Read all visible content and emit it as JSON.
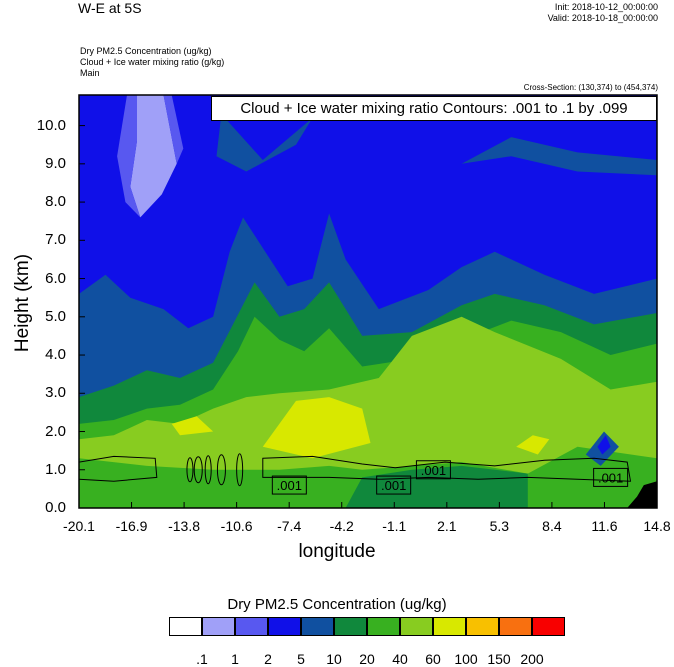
{
  "header": {
    "title": "W-E at 5S",
    "init": "Init: 2018-10-12_00:00:00",
    "valid": "Valid: 2018-10-18_00:00:00",
    "field1": "Dry PM2.5 Concentration   (ug/kg)",
    "field2": "Cloud + Ice water mixing ratio   (g/kg)",
    "field3": "Main",
    "cross_section": "Cross-Section: (130,374) to (454,374)"
  },
  "chart_data": {
    "type": "heatmap",
    "contour_title": "Cloud + Ice water mixing ratio Contours: .001 to .1 by .099",
    "xlabel": "longitude",
    "ylabel": "Height (km)",
    "x_ticks": [
      "-20.1",
      "-16.9",
      "-13.8",
      "-10.6",
      "-7.4",
      "-4.2",
      "-1.1",
      "2.1",
      "5.3",
      "8.4",
      "11.6",
      "14.8"
    ],
    "x_range": [
      -20.1,
      14.8
    ],
    "y_ticks": [
      "0.0",
      "1.0",
      "2.0",
      "3.0",
      "4.0",
      "5.0",
      "6.0",
      "7.0",
      "8.0",
      "9.0",
      "10.0"
    ],
    "y_range": [
      0,
      10.8
    ],
    "contour_labels": [
      {
        "text": ".001",
        "x": -7.4,
        "y": 0.6
      },
      {
        "text": ".001",
        "x": -1.1,
        "y": 0.6
      },
      {
        "text": ".001",
        "x": 1.3,
        "y": 1.0
      },
      {
        "text": ".001",
        "x": 12.0,
        "y": 0.8
      }
    ],
    "colorbar": {
      "title": "Dry PM2.5 Concentration  (ug/kg)",
      "labels": [
        ".1",
        "1",
        "2",
        "5",
        "10",
        "20",
        "40",
        "60",
        "100",
        "150",
        "200"
      ],
      "colors": [
        "#ffffff",
        "#a0a0f8",
        "#5858f0",
        "#1010e8",
        "#1050a0",
        "#10883c",
        "#38b020",
        "#88cc20",
        "#d8e800",
        "#f8c000",
        "#f87010",
        "#f80000"
      ]
    },
    "regions": [
      {
        "color": "#1010e8",
        "pts": [
          [
            -20.1,
            0
          ],
          [
            14.8,
            0
          ],
          [
            14.8,
            10.8
          ],
          [
            -20.1,
            10.8
          ]
        ]
      },
      {
        "color": "#1050a0",
        "pts": [
          [
            -20.1,
            0
          ],
          [
            14.8,
            0
          ],
          [
            14.8,
            6.0
          ],
          [
            11,
            5.6
          ],
          [
            8,
            6.1
          ],
          [
            5,
            6.7
          ],
          [
            3,
            6.3
          ],
          [
            1,
            5.7
          ],
          [
            -2,
            5.2
          ],
          [
            -4,
            6.5
          ],
          [
            -5,
            7.7
          ],
          [
            -6,
            6.0
          ],
          [
            -7.5,
            5.8
          ],
          [
            -9,
            6.8
          ],
          [
            -10.2,
            7.6
          ],
          [
            -11,
            6.7
          ],
          [
            -12,
            5.0
          ],
          [
            -13.5,
            4.7
          ],
          [
            -15,
            5.2
          ],
          [
            -17,
            5.5
          ],
          [
            -18.5,
            6.1
          ],
          [
            -20.1,
            5.6
          ]
        ]
      },
      {
        "color": "#1050a0",
        "pts": [
          [
            -11.5,
            10.3
          ],
          [
            -9,
            9.1
          ],
          [
            -6,
            10.2
          ],
          [
            -7,
            9.5
          ],
          [
            -10,
            8.8
          ],
          [
            -11.8,
            9.2
          ]
        ]
      },
      {
        "color": "#1050a0",
        "pts": [
          [
            3,
            9.0
          ],
          [
            6,
            9.7
          ],
          [
            10,
            9.3
          ],
          [
            14.8,
            9.1
          ],
          [
            14.8,
            8.7
          ],
          [
            10,
            8.8
          ],
          [
            6,
            9.2
          ]
        ]
      },
      {
        "color": "#10883c",
        "pts": [
          [
            -20.1,
            0
          ],
          [
            14.8,
            0
          ],
          [
            14.8,
            5.1
          ],
          [
            11,
            4.8
          ],
          [
            8,
            5.3
          ],
          [
            5,
            5.6
          ],
          [
            3,
            5.3
          ],
          [
            0,
            4.6
          ],
          [
            -3,
            4.5
          ],
          [
            -5,
            5.9
          ],
          [
            -6.5,
            5.2
          ],
          [
            -8,
            5.0
          ],
          [
            -9.5,
            5.9
          ],
          [
            -10.8,
            4.8
          ],
          [
            -12,
            3.8
          ],
          [
            -14,
            3.4
          ],
          [
            -16,
            3.6
          ],
          [
            -18,
            3.2
          ],
          [
            -20.1,
            2.9
          ]
        ]
      },
      {
        "color": "#38b020",
        "pts": [
          [
            -20.1,
            0
          ],
          [
            14.8,
            0
          ],
          [
            14.8,
            4.3
          ],
          [
            12,
            4.0
          ],
          [
            9,
            4.6
          ],
          [
            6,
            4.9
          ],
          [
            3,
            4.4
          ],
          [
            0,
            3.9
          ],
          [
            -3,
            3.7
          ],
          [
            -5,
            4.7
          ],
          [
            -6.5,
            4.1
          ],
          [
            -8,
            4.4
          ],
          [
            -9.5,
            5.0
          ],
          [
            -10.5,
            4.1
          ],
          [
            -12,
            3.1
          ],
          [
            -14,
            2.7
          ],
          [
            -16,
            2.6
          ],
          [
            -18,
            2.3
          ],
          [
            -20.1,
            2.2
          ]
        ]
      },
      {
        "color": "#88cc20",
        "pts": [
          [
            -20.1,
            0
          ],
          [
            14.8,
            0
          ],
          [
            14.8,
            3.3
          ],
          [
            12,
            3.1
          ],
          [
            9,
            3.9
          ],
          [
            5,
            4.6
          ],
          [
            3,
            5.0
          ],
          [
            0,
            4.5
          ],
          [
            -2,
            3.4
          ],
          [
            -5,
            3.1
          ],
          [
            -8,
            3.0
          ],
          [
            -10,
            2.9
          ],
          [
            -12,
            2.6
          ],
          [
            -14,
            2.2
          ],
          [
            -16,
            2.3
          ],
          [
            -18,
            1.9
          ],
          [
            -20.1,
            1.8
          ]
        ]
      },
      {
        "color": "#d8e800",
        "pts": [
          [
            -9,
            1.6
          ],
          [
            -7,
            2.8
          ],
          [
            -5,
            2.9
          ],
          [
            -3,
            2.6
          ],
          [
            -2.5,
            1.7
          ],
          [
            -6,
            1.3
          ]
        ]
      },
      {
        "color": "#d8e800",
        "pts": [
          [
            -14.5,
            2.2
          ],
          [
            -13,
            2.4
          ],
          [
            -12,
            2.0
          ],
          [
            -14,
            1.9
          ]
        ]
      },
      {
        "color": "#d8e800",
        "pts": [
          [
            6.3,
            1.6
          ],
          [
            7.3,
            1.9
          ],
          [
            8.3,
            1.8
          ],
          [
            7.6,
            1.4
          ]
        ]
      },
      {
        "color": "#38b020",
        "pts": [
          [
            -20.1,
            0
          ],
          [
            14.8,
            0
          ],
          [
            14.8,
            1.3
          ],
          [
            10,
            1.6
          ],
          [
            7,
            0.9
          ],
          [
            3,
            1.2
          ],
          [
            0,
            1.1
          ],
          [
            -3,
            1.0
          ],
          [
            -5,
            1.1
          ],
          [
            -8,
            1.0
          ],
          [
            -12,
            1.0
          ],
          [
            -16,
            1.1
          ],
          [
            -20.1,
            1.3
          ]
        ]
      },
      {
        "color": "#10883c",
        "pts": [
          [
            -4,
            0
          ],
          [
            7,
            0
          ],
          [
            7,
            0.9
          ],
          [
            3,
            1.1
          ],
          [
            0,
            1.0
          ],
          [
            -3,
            0.8
          ]
        ]
      },
      {
        "color": "#1050a0",
        "pts": [
          [
            10.5,
            1.4
          ],
          [
            11.6,
            2.0
          ],
          [
            12.5,
            1.6
          ],
          [
            11.4,
            1.1
          ]
        ]
      },
      {
        "color": "#1010e8",
        "pts": [
          [
            11.2,
            1.6
          ],
          [
            11.7,
            1.9
          ],
          [
            12.0,
            1.6
          ],
          [
            11.5,
            1.4
          ]
        ]
      },
      {
        "color": "#000000",
        "pts": [
          [
            13,
            0
          ],
          [
            14.8,
            0
          ],
          [
            14.8,
            0.7
          ],
          [
            14,
            0.6
          ],
          [
            13.6,
            0.3
          ]
        ]
      },
      {
        "color": "#a0a0f8",
        "pts": [
          [
            -16.6,
            10.8
          ],
          [
            -15.0,
            10.8
          ],
          [
            -14.2,
            9.0
          ],
          [
            -15.1,
            8.2
          ],
          [
            -16.4,
            7.6
          ],
          [
            -17.0,
            8.4
          ],
          [
            -16.6,
            9.6
          ]
        ]
      },
      {
        "color": "#5858f0",
        "pts": [
          [
            -17.2,
            10.8
          ],
          [
            -16.6,
            10.8
          ],
          [
            -16.6,
            9.6
          ],
          [
            -17.0,
            8.4
          ],
          [
            -16.4,
            7.6
          ],
          [
            -17.3,
            8.0
          ],
          [
            -17.8,
            9.2
          ]
        ]
      },
      {
        "color": "#5858f0",
        "pts": [
          [
            -15.0,
            10.8
          ],
          [
            -14.5,
            10.8
          ],
          [
            -13.8,
            9.4
          ],
          [
            -14.2,
            9.0
          ]
        ]
      }
    ]
  }
}
